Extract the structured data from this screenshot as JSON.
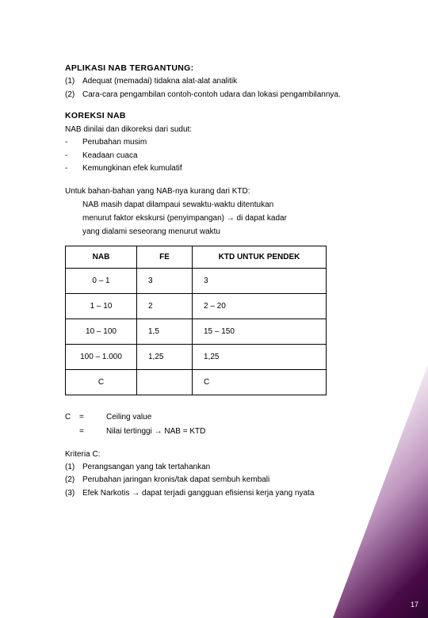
{
  "section1": {
    "heading": "APLIKASI NAB TERGANTUNG:",
    "items": [
      {
        "n": "(1)",
        "t": "Adequat (memadai) tidakna alat-alat analitik"
      },
      {
        "n": "(2)",
        "t": "Cara-cara pengambilan contoh-contoh udara dan lokasi pengambilannya."
      }
    ]
  },
  "section2": {
    "heading": "KOREKSI NAB",
    "lead": "NAB dinilai dan dikoreksi dari sudut:",
    "items": [
      {
        "n": "-",
        "t": "Perubahan musim"
      },
      {
        "n": "-",
        "t": "Keadaan cuaca"
      },
      {
        "n": "-",
        "t": "Kemungkinan efek kumulatif"
      }
    ]
  },
  "para1": "Untuk bahan-bahan yang NAB-nya kurang dari KTD:",
  "para2": "NAB masih dapat dilampaui sewaktu-waktu ditentukan",
  "para3": "menurut faktor ekskursi (penyimpangan) → di dapat kadar",
  "para4": "yang dialami seseorang menurut waktu",
  "table": {
    "headers": [
      "NAB",
      "FE",
      "KTD UNTUK PENDEK"
    ],
    "rows": [
      [
        "0 – 1",
        "3",
        "3"
      ],
      [
        "1 – 10",
        "2",
        "2 – 20"
      ],
      [
        "10 – 100",
        "1,5",
        "15 – 150"
      ],
      [
        "100 – 1.000",
        "1,25",
        "1,25"
      ],
      [
        "C",
        "",
        "C"
      ]
    ]
  },
  "legend": {
    "rows": [
      {
        "a": "C",
        "b": "=",
        "d": "Ceiling value"
      },
      {
        "a": "",
        "b": "=",
        "d": "Nilai tertinggi → NAB = KTD"
      }
    ]
  },
  "section3": {
    "heading": "Kriteria C:",
    "items": [
      {
        "n": "(1)",
        "t": "Perangsangan yang tak tertahankan"
      },
      {
        "n": "(2)",
        "t": "Perubahan jaringan kronis/tak dapat sembuh kembali"
      },
      {
        "n": "(3)",
        "t": "Efek Narkotis → dapat terjadi gangguan efisiensi kerja yang nyata"
      }
    ]
  },
  "pagenum": "17"
}
